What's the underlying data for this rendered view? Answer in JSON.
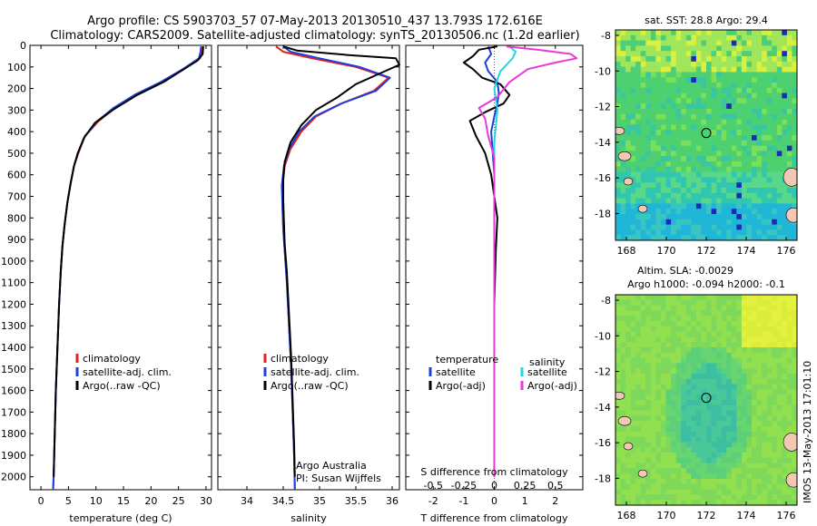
{
  "title": {
    "line1": "Argo profile: CS 5903703_57 07-May-2013 20130510_437 13.793S 172.616E",
    "line2": "Climatology: CARS2009. Satellite-adjusted climatology: synTS_20130506.nc (1.2d earlier)"
  },
  "side_label": "IMOS 13-May-2013 17:01:10",
  "colors": {
    "climatology": "#e8201a",
    "satellite": "#1f3fd8",
    "argo": "#000000",
    "cyan": "#22d6e6",
    "magenta": "#e83ad8"
  },
  "y_axis": {
    "ticks": [
      0,
      100,
      200,
      300,
      400,
      500,
      600,
      700,
      800,
      900,
      1000,
      1100,
      1200,
      1300,
      1400,
      1500,
      1600,
      1700,
      1800,
      1900,
      2000
    ],
    "range": [
      0,
      2060
    ]
  },
  "chart_data": [
    {
      "type": "line",
      "xlabel": "temperature (deg C)",
      "xticks": [
        0,
        5,
        10,
        15,
        20,
        25,
        30
      ],
      "xlim": [
        -2,
        31
      ],
      "legend": [
        "climatology",
        "satellite-adj. clim.",
        "Argo(..raw -QC)"
      ],
      "series": [
        {
          "name": "climatology",
          "color": "#e8201a",
          "points": [
            [
              29.4,
              5
            ],
            [
              29.3,
              30
            ],
            [
              28.9,
              60
            ],
            [
              26,
              110
            ],
            [
              22,
              170
            ],
            [
              17,
              230
            ],
            [
              13.5,
              290
            ],
            [
              10.5,
              350
            ],
            [
              8,
              420
            ],
            [
              6.8,
              500
            ],
            [
              6,
              560
            ],
            [
              5.4,
              640
            ],
            [
              4.8,
              730
            ],
            [
              4.3,
              830
            ],
            [
              3.9,
              930
            ],
            [
              3.6,
              1050
            ],
            [
              3.3,
              1200
            ],
            [
              3,
              1400
            ],
            [
              2.7,
              1600
            ],
            [
              2.5,
              1800
            ],
            [
              2.3,
              2000
            ],
            [
              2.2,
              2060
            ]
          ]
        },
        {
          "name": "satellite-adj. clim.",
          "color": "#1f3fd8",
          "points": [
            [
              29.1,
              5
            ],
            [
              29,
              30
            ],
            [
              28.7,
              60
            ],
            [
              25.8,
              110
            ],
            [
              21.8,
              170
            ],
            [
              17,
              230
            ],
            [
              13.2,
              290
            ],
            [
              10.3,
              350
            ],
            [
              8,
              420
            ],
            [
              6.7,
              500
            ],
            [
              6,
              560
            ],
            [
              5.4,
              640
            ],
            [
              4.8,
              730
            ],
            [
              4.3,
              830
            ],
            [
              3.9,
              930
            ],
            [
              3.6,
              1050
            ],
            [
              3.3,
              1200
            ],
            [
              3,
              1400
            ],
            [
              2.7,
              1600
            ],
            [
              2.5,
              1800
            ],
            [
              2.3,
              2000
            ],
            [
              2.2,
              2060
            ]
          ]
        },
        {
          "name": "Argo(..raw -QC)",
          "color": "#000000",
          "points": [
            [
              29.5,
              5
            ],
            [
              29.4,
              40
            ],
            [
              28.5,
              70
            ],
            [
              26,
              110
            ],
            [
              22.3,
              170
            ],
            [
              17.5,
              230
            ],
            [
              13,
              300
            ],
            [
              9.8,
              360
            ],
            [
              7.8,
              430
            ],
            [
              6.7,
              500
            ],
            [
              6,
              560
            ],
            [
              5.4,
              640
            ],
            [
              4.8,
              730
            ],
            [
              4.3,
              830
            ],
            [
              3.9,
              930
            ],
            [
              3.6,
              1050
            ],
            [
              3.3,
              1200
            ],
            [
              3,
              1400
            ],
            [
              2.7,
              1600
            ],
            [
              2.5,
              1800
            ],
            [
              2.3,
              2000
            ]
          ]
        }
      ]
    },
    {
      "type": "line",
      "xlabel": "salinity",
      "xticks": [
        34,
        34.5,
        35,
        35.5,
        36
      ],
      "xlim": [
        33.6,
        36.1
      ],
      "legend": [
        "climatology",
        "satellite-adj. clim.",
        "Argo(..raw -QC)"
      ],
      "annotation": [
        "Argo Australia",
        "PI: Susan Wijffels"
      ],
      "series": [
        {
          "name": "climatology",
          "color": "#e8201a",
          "points": [
            [
              34.4,
              5
            ],
            [
              34.5,
              30
            ],
            [
              34.9,
              60
            ],
            [
              35.5,
              100
            ],
            [
              35.95,
              150
            ],
            [
              35.75,
              210
            ],
            [
              35.3,
              270
            ],
            [
              34.95,
              330
            ],
            [
              34.75,
              400
            ],
            [
              34.6,
              480
            ],
            [
              34.52,
              560
            ],
            [
              34.49,
              650
            ],
            [
              34.49,
              750
            ],
            [
              34.5,
              850
            ],
            [
              34.52,
              950
            ],
            [
              34.55,
              1100
            ],
            [
              34.58,
              1300
            ],
            [
              34.61,
              1500
            ],
            [
              34.63,
              1700
            ],
            [
              34.65,
              1900
            ],
            [
              34.66,
              2060
            ]
          ]
        },
        {
          "name": "satellite-adj. clim.",
          "color": "#1f3fd8",
          "points": [
            [
              34.5,
              5
            ],
            [
              34.6,
              30
            ],
            [
              35,
              60
            ],
            [
              35.55,
              100
            ],
            [
              35.97,
              150
            ],
            [
              35.78,
              210
            ],
            [
              35.3,
              270
            ],
            [
              34.93,
              330
            ],
            [
              34.72,
              400
            ],
            [
              34.58,
              480
            ],
            [
              34.51,
              560
            ],
            [
              34.48,
              650
            ],
            [
              34.49,
              750
            ],
            [
              34.5,
              850
            ],
            [
              34.52,
              950
            ],
            [
              34.55,
              1100
            ],
            [
              34.58,
              1300
            ],
            [
              34.61,
              1500
            ],
            [
              34.63,
              1700
            ],
            [
              34.65,
              1900
            ],
            [
              34.66,
              2060
            ]
          ]
        },
        {
          "name": "Argo(..raw -QC)",
          "color": "#000000",
          "points": [
            [
              34.5,
              5
            ],
            [
              34.7,
              25
            ],
            [
              35.4,
              45
            ],
            [
              36.05,
              60
            ],
            [
              36.1,
              90
            ],
            [
              35.9,
              120
            ],
            [
              35.5,
              180
            ],
            [
              35.25,
              240
            ],
            [
              34.95,
              300
            ],
            [
              34.75,
              370
            ],
            [
              34.6,
              450
            ],
            [
              34.52,
              540
            ],
            [
              34.5,
              620
            ],
            [
              34.5,
              720
            ],
            [
              34.51,
              820
            ],
            [
              34.52,
              920
            ],
            [
              34.55,
              1050
            ],
            [
              34.58,
              1250
            ],
            [
              34.61,
              1450
            ],
            [
              34.63,
              1650
            ],
            [
              34.65,
              1850
            ],
            [
              34.66,
              2000
            ]
          ]
        }
      ]
    },
    {
      "type": "line",
      "xlabel": "T difference from climatology",
      "xlabel2": "S difference from climatology",
      "xticks": [
        -2,
        -1,
        0,
        1,
        2
      ],
      "xticks_top_labels": [
        "-0.5",
        "-0.25",
        "0",
        "0.25",
        "0.5"
      ],
      "xlim": [
        -2.9,
        2.9
      ],
      "legend_left_title": "temperature",
      "legend_left": [
        "satellite",
        "Argo(-adj)"
      ],
      "legend_right_title": "salinity",
      "legend_right": [
        "satellite",
        "Argo(-adj)"
      ],
      "series": [
        {
          "name": "satellite",
          "color": "#1f3fd8",
          "points": [
            [
              -0.2,
              5
            ],
            [
              -0.1,
              40
            ],
            [
              -0.3,
              80
            ],
            [
              -0.2,
              120
            ],
            [
              0.1,
              170
            ],
            [
              0.15,
              220
            ],
            [
              0.1,
              270
            ],
            [
              0,
              330
            ],
            [
              -0.1,
              400
            ],
            [
              -0.05,
              500
            ],
            [
              0,
              600
            ],
            [
              0,
              800
            ],
            [
              0,
              1200
            ],
            [
              0,
              1600
            ],
            [
              0,
              2000
            ]
          ]
        },
        {
          "name": "Argo(-adj)",
          "color": "#000000",
          "points": [
            [
              0.1,
              5
            ],
            [
              -0.5,
              20
            ],
            [
              -0.7,
              50
            ],
            [
              -1,
              80
            ],
            [
              -0.7,
              110
            ],
            [
              -0.4,
              150
            ],
            [
              0.2,
              180
            ],
            [
              0.5,
              230
            ],
            [
              0.3,
              270
            ],
            [
              -0.3,
              310
            ],
            [
              -0.8,
              350
            ],
            [
              -0.6,
              420
            ],
            [
              -0.3,
              500
            ],
            [
              -0.1,
              600
            ],
            [
              0,
              700
            ],
            [
              0.1,
              800
            ],
            [
              0.05,
              950
            ],
            [
              0,
              1200
            ],
            [
              0,
              1600
            ],
            [
              0,
              2000
            ]
          ]
        },
        {
          "name": "satellite",
          "color": "#22d6e6",
          "points": [
            [
              0.5,
              5
            ],
            [
              0.7,
              30
            ],
            [
              0.6,
              60
            ],
            [
              0.2,
              120
            ],
            [
              0,
              200
            ],
            [
              0.1,
              300
            ],
            [
              0,
              450
            ],
            [
              0,
              800
            ],
            [
              0,
              1300
            ],
            [
              0,
              2000
            ]
          ]
        },
        {
          "name": "Argo(-adj)",
          "color": "#e83ad8",
          "points": [
            [
              0.4,
              5
            ],
            [
              1.4,
              20
            ],
            [
              2.5,
              40
            ],
            [
              2.7,
              60
            ],
            [
              2,
              80
            ],
            [
              1.1,
              110
            ],
            [
              0.5,
              170
            ],
            [
              0.1,
              240
            ],
            [
              -0.5,
              290
            ],
            [
              -0.3,
              340
            ],
            [
              -0.2,
              420
            ],
            [
              0,
              520
            ],
            [
              0,
              700
            ],
            [
              0,
              1000
            ],
            [
              0,
              2000
            ]
          ]
        }
      ]
    }
  ],
  "map_sst": {
    "title": "sat. SST: 28.8 Argo: 29.4",
    "xticks": [
      "168",
      "170",
      "172",
      "174",
      "176"
    ],
    "yticks": [
      "-8",
      "-10",
      "-12",
      "-14",
      "-16",
      "-18"
    ]
  },
  "map_sla": {
    "title1": "Altim. SLA: -0.0029",
    "title2": "Argo h1000: -0.094 h2000: -0.1",
    "xticks": [
      "168",
      "170",
      "172",
      "174",
      "176"
    ],
    "yticks": [
      "-8",
      "-10",
      "-12",
      "-14",
      "-16",
      "-18"
    ]
  }
}
